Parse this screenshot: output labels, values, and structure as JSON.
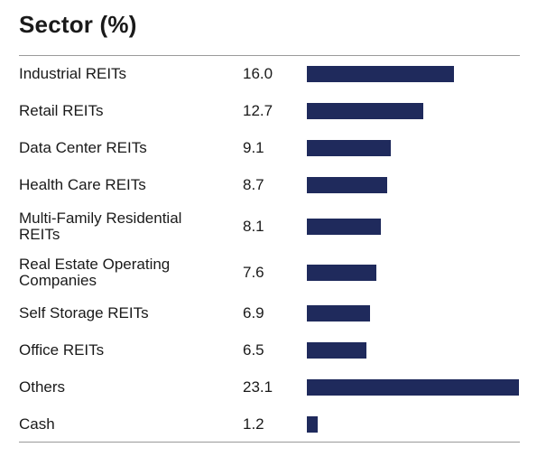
{
  "colors": {
    "bar": "#1f2a5c",
    "rule": "#9a9a9a",
    "text": "#1a1a1a"
  },
  "chart_data": {
    "type": "bar",
    "orientation": "horizontal",
    "title": "Sector (%)",
    "categories": [
      "Industrial REITs",
      "Retail REITs",
      "Data Center REITs",
      "Health Care REITs",
      "Multi-Family Residential REITs",
      "Real Estate Operating Companies",
      "Self Storage REITs",
      "Office REITs",
      "Others",
      "Cash"
    ],
    "label_lines": [
      [
        "Industrial REITs"
      ],
      [
        "Retail REITs"
      ],
      [
        "Data Center REITs"
      ],
      [
        "Health Care REITs"
      ],
      [
        "Multi-Family Residential",
        "REITs"
      ],
      [
        "Real Estate Operating",
        "Companies"
      ],
      [
        "Self Storage REITs"
      ],
      [
        "Office REITs"
      ],
      [
        "Others"
      ],
      [
        "Cash"
      ]
    ],
    "values": [
      16.0,
      12.7,
      9.1,
      8.7,
      8.1,
      7.6,
      6.9,
      6.5,
      23.1,
      1.2
    ],
    "value_labels": [
      "16.0",
      "12.7",
      "9.1",
      "8.7",
      "8.1",
      "7.6",
      "6.9",
      "6.5",
      "23.1",
      "1.2"
    ],
    "xlim": [
      0,
      23.1
    ],
    "grid": false,
    "legend": "none"
  }
}
